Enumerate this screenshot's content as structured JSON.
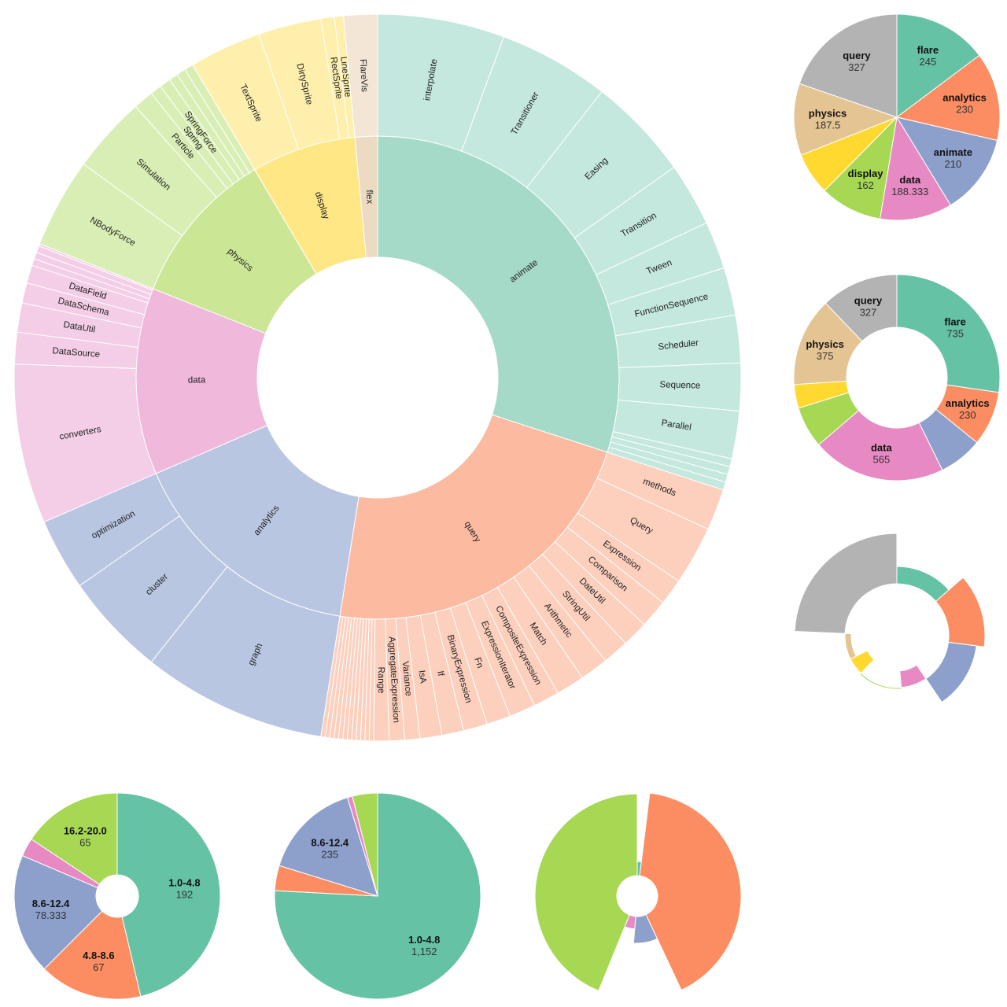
{
  "colors": {
    "flare": "#66c2a5",
    "analytics": "#fc8d62",
    "animate": "#8da0cb",
    "data": "#e78ac3",
    "display": "#a6d854",
    "physics": "#ffd92f",
    "query": "#e5c494",
    "scale": "#b3b3b3"
  },
  "chart_data": [
    {
      "type": "sunburst",
      "title": "",
      "children": [
        {
          "name": "animate",
          "color": "#a5dac9",
          "child_color": "#c4e8dd",
          "value": 30,
          "children": [
            {
              "name": "interpolate",
              "value": 3.2
            },
            {
              "name": "Transitioner",
              "value": 2.8
            },
            {
              "name": "Easing",
              "value": 2.6
            },
            {
              "name": "Transition",
              "value": 1.6
            },
            {
              "name": "Tween",
              "value": 1.2
            },
            {
              "name": "FunctionSequence",
              "value": 1.2
            },
            {
              "name": "Scheduler",
              "value": 1.2
            },
            {
              "name": "Sequence",
              "value": 1.2
            },
            {
              "name": "Parallel",
              "value": 1.2
            },
            {
              "name": "",
              "value": 0.2
            },
            {
              "name": "",
              "value": 0.2
            },
            {
              "name": "",
              "value": 0.2
            },
            {
              "name": "",
              "value": 0.2
            }
          ]
        },
        {
          "name": "query",
          "color": "#fcbaa0",
          "child_color": "#fdcfbd",
          "value": 22.5,
          "children": [
            {
              "name": "methods",
              "value": 1.9
            },
            {
              "name": "Query",
              "value": 2.7
            },
            {
              "name": "Expression",
              "value": 1.2
            },
            {
              "name": "Comparison",
              "value": 1.3
            },
            {
              "name": "DateUtil",
              "value": 1.2
            },
            {
              "name": "StringUtil",
              "value": 1.2
            },
            {
              "name": "Arithmetic",
              "value": 1.3
            },
            {
              "name": "Match",
              "value": 1.3
            },
            {
              "name": "CompositeExpression",
              "value": 1.2
            },
            {
              "name": "ExpressionIterator",
              "value": 1.2
            },
            {
              "name": "Fn",
              "value": 1.1
            },
            {
              "name": "BinaryExpression",
              "value": 1.1
            },
            {
              "name": "If",
              "value": 1.0
            },
            {
              "name": "IsA",
              "value": 1.0
            },
            {
              "name": "Variance",
              "value": 0.7
            },
            {
              "name": "AggregateExpression",
              "value": 0.7
            },
            {
              "name": "Range",
              "value": 0.7
            },
            {
              "name": "",
              "value": 0.2
            },
            {
              "name": "",
              "value": 0.2
            },
            {
              "name": "",
              "value": 0.2
            },
            {
              "name": "",
              "value": 0.2
            },
            {
              "name": "",
              "value": 0.2
            },
            {
              "name": "",
              "value": 0.2
            },
            {
              "name": "",
              "value": 0.2
            },
            {
              "name": "",
              "value": 0.2
            },
            {
              "name": "",
              "value": 0.2
            },
            {
              "name": "",
              "value": 0.2
            },
            {
              "name": "",
              "value": 0.2
            },
            {
              "name": "",
              "value": 0.2
            }
          ]
        },
        {
          "name": "analytics",
          "color": "#b9c6e1",
          "child_color": "#b9c6e1",
          "value": 16,
          "children": [
            {
              "name": "graph",
              "value": 8.2
            },
            {
              "name": "cluster",
              "value": 4.6
            },
            {
              "name": "optimization",
              "value": 3.2
            }
          ]
        },
        {
          "name": "data",
          "color": "#f0b9dc",
          "child_color": "#f4cde6",
          "value": 12.5,
          "children": [
            {
              "name": "converters",
              "value": 7.1
            },
            {
              "name": "DataSource",
              "value": 1.4
            },
            {
              "name": "DataUtil",
              "value": 1.3
            },
            {
              "name": "DataSchema",
              "value": 0.9
            },
            {
              "name": "DataField",
              "value": 0.8
            },
            {
              "name": "",
              "value": 0.3
            },
            {
              "name": "",
              "value": 0.3
            },
            {
              "name": "",
              "value": 0.3
            },
            {
              "name": "",
              "value": 0.1
            }
          ]
        },
        {
          "name": "physics",
          "color": "#cbe695",
          "child_color": "#d9eeb5",
          "value": 10.5,
          "children": [
            {
              "name": "NBodyForce",
              "value": 4.0
            },
            {
              "name": "Simulation",
              "value": 3.4
            },
            {
              "name": "Particle",
              "value": 0.9
            },
            {
              "name": "Spring",
              "value": 0.5
            },
            {
              "name": "SpringForce",
              "value": 0.5
            },
            {
              "name": "",
              "value": 0.4
            },
            {
              "name": "",
              "value": 0.4
            },
            {
              "name": "",
              "value": 0.4
            }
          ]
        },
        {
          "name": "display",
          "color": "#ffe785",
          "child_color": "#ffefad",
          "value": 7,
          "children": [
            {
              "name": "TextSprite",
              "value": 3.2
            },
            {
              "name": "DirtySprite",
              "value": 2.8
            },
            {
              "name": "RectSprite",
              "value": 0.6
            },
            {
              "name": "LineSprite",
              "value": 0.4
            }
          ]
        },
        {
          "name": "flex",
          "color": "#ecdbc2",
          "child_color": "#f3e6d6",
          "value": 1.5,
          "children": [
            {
              "name": "FlareVis",
              "value": 1.5
            }
          ]
        }
      ]
    },
    {
      "type": "pie",
      "title": "",
      "slices": [
        {
          "name": "flare",
          "value": 245,
          "label": "245",
          "color": "#66c2a5"
        },
        {
          "name": "analytics",
          "value": 230,
          "label": "230",
          "color": "#fc8d62"
        },
        {
          "name": "animate",
          "value": 210,
          "label": "210",
          "color": "#8da0cb"
        },
        {
          "name": "data",
          "value": 188.333,
          "label": "188.333",
          "color": "#e78ac3"
        },
        {
          "name": "display",
          "value": 162,
          "label": "162",
          "color": "#a6d854"
        },
        {
          "name": "",
          "value": 110,
          "label": "",
          "color": "#ffd92f"
        },
        {
          "name": "physics",
          "value": 187.5,
          "label": "187.5",
          "color": "#e5c494"
        },
        {
          "name": "query",
          "value": 327,
          "label": "327",
          "color": "#b3b3b3"
        }
      ]
    },
    {
      "type": "donut",
      "title": "",
      "slices": [
        {
          "name": "flare",
          "value": 735,
          "label": "735",
          "color": "#66c2a5"
        },
        {
          "name": "analytics",
          "value": 230,
          "label": "230",
          "color": "#fc8d62"
        },
        {
          "name": "",
          "value": 185,
          "label": "",
          "color": "#8da0cb"
        },
        {
          "name": "data",
          "value": 565,
          "label": "565",
          "color": "#e78ac3"
        },
        {
          "name": "",
          "value": 175,
          "label": "",
          "color": "#a6d854"
        },
        {
          "name": "",
          "value": 100,
          "label": "",
          "color": "#ffd92f"
        },
        {
          "name": "physics",
          "value": 375,
          "label": "375",
          "color": "#e5c494"
        },
        {
          "name": "query",
          "value": 327,
          "label": "327",
          "color": "#b3b3b3"
        }
      ]
    },
    {
      "type": "nightingale",
      "title": "",
      "slices": [
        {
          "value": 100,
          "magnitude": 88,
          "color": "#66c2a5"
        },
        {
          "value": 100,
          "magnitude": 112,
          "color": "#fc8d62"
        },
        {
          "value": 100,
          "magnitude": 102,
          "color": "#8da0cb"
        },
        {
          "value": 60,
          "magnitude": 45,
          "color": "#e78ac3"
        },
        {
          "value": 100,
          "magnitude": 68,
          "color": "#a6d854"
        },
        {
          "value": 40,
          "magnitude": 42,
          "color": "#ffd92f"
        },
        {
          "value": 60,
          "magnitude": 58,
          "color": "#e5c494"
        },
        {
          "value": 180,
          "magnitude": 130,
          "color": "#b3b3b3"
        }
      ]
    },
    {
      "type": "donut",
      "title": "",
      "slices": [
        {
          "name": "1.0-4.8",
          "value": 192,
          "label": "192",
          "color": "#66c2a5"
        },
        {
          "name": "4.8-8.6",
          "value": 67,
          "label": "67",
          "color": "#fc8d62"
        },
        {
          "name": "8.6-12.4",
          "value": 78.333,
          "label": "78.333",
          "color": "#8da0cb"
        },
        {
          "name": "",
          "value": 12,
          "label": "",
          "color": "#e78ac3"
        },
        {
          "name": "16.2-20.0",
          "value": 65,
          "label": "65",
          "color": "#a6d854"
        }
      ]
    },
    {
      "type": "pie",
      "title": "",
      "slices": [
        {
          "name": "1.0-4.8",
          "value": 1152,
          "label": "1,152",
          "color": "#66c2a5"
        },
        {
          "name": "",
          "value": 60,
          "label": "",
          "color": "#fc8d62"
        },
        {
          "name": "8.6-12.4",
          "value": 235,
          "label": "235",
          "color": "#8da0cb"
        },
        {
          "name": "",
          "value": 12,
          "label": "",
          "color": "#e78ac3"
        },
        {
          "name": "",
          "value": 60,
          "label": "",
          "color": "#a6d854"
        }
      ]
    },
    {
      "type": "nightingale",
      "title": "",
      "slices": [
        {
          "value": 7,
          "magnitude": 44,
          "color": "#66c2a5"
        },
        {
          "value": 150,
          "magnitude": 132,
          "color": "#fc8d62"
        },
        {
          "value": 30,
          "magnitude": 60,
          "color": "#8da0cb"
        },
        {
          "value": 18,
          "magnitude": 42,
          "color": "#e78ac3"
        },
        {
          "value": 160,
          "magnitude": 130,
          "color": "#a6d854"
        }
      ]
    }
  ]
}
